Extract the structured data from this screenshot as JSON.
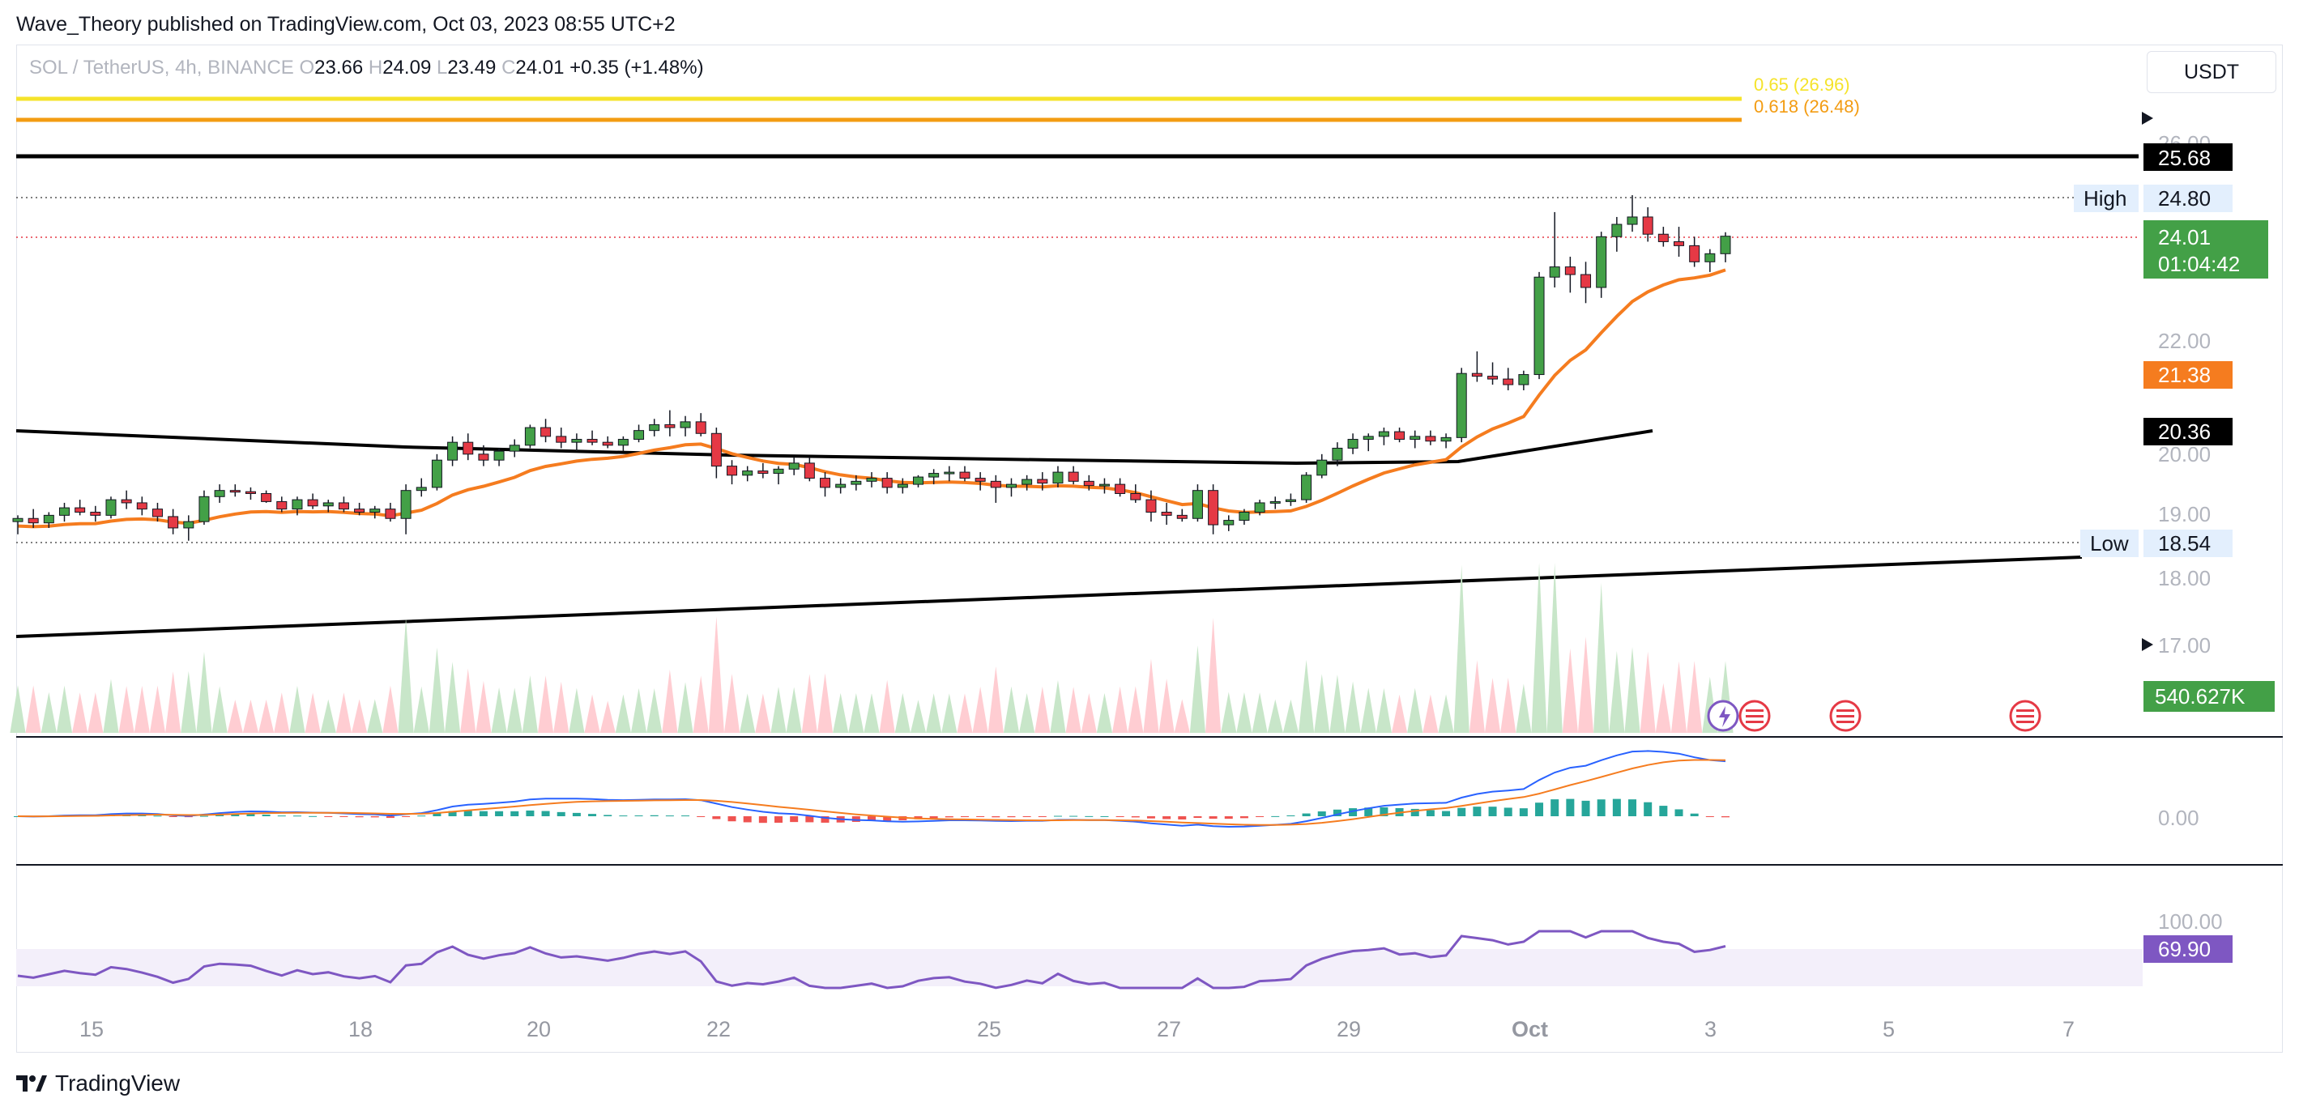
{
  "header": {
    "attribution": "Wave_Theory published on TradingView.com, Oct 03, 2023 08:55 UTC+2"
  },
  "legend": {
    "symbol": "SOL / TetherUS, 4h, BINANCE",
    "o_label": "O",
    "o_value": "23.66",
    "h_label": "H",
    "h_value": "24.09",
    "l_label": "L",
    "l_value": "23.49",
    "c_label": "C",
    "c_value": "24.01",
    "change": "+0.35 (+1.48%)"
  },
  "currency": "USDT",
  "footer": {
    "brand": "TradingView"
  },
  "colors": {
    "up": "#43a047",
    "down": "#e53945",
    "ema_orange": "#f57c1f",
    "ema_black": "#000000",
    "fib_065": "#f5e32a",
    "fib_0618": "#f39c12",
    "macd_line": "#2962ff",
    "signal_line": "#f57c1f",
    "rsi_line": "#7e57c2",
    "rsi_band": "#f3effa",
    "vol_up": "#c8e6c9",
    "vol_down": "#ffcdd2"
  },
  "chart_data": {
    "type": "candlestick",
    "symbol": "SOL / TetherUS",
    "interval": "4h",
    "exchange": "BINANCE",
    "price_axis": {
      "ticks": [
        "26.00",
        "22.00",
        "20.00",
        "19.00",
        "18.00",
        "17.00",
        "0.00",
        "100.00"
      ],
      "scale": "log"
    },
    "time_axis": {
      "ticks": [
        "15",
        "18",
        "20",
        "22",
        "25",
        "27",
        "29",
        "Oct",
        "3",
        "5",
        "7"
      ]
    },
    "horizontal_levels": [
      {
        "label": "0.65 (26.96)",
        "value": 26.96,
        "color": "#f5e32a"
      },
      {
        "label": "0.618 (26.48)",
        "value": 26.48,
        "color": "#f39c12"
      },
      {
        "label": "",
        "value": 25.68,
        "color": "#000000",
        "tag": "25.68"
      },
      {
        "label": "High",
        "value": 24.8,
        "tag": "24.80",
        "style": "dotted"
      },
      {
        "label": "Low",
        "value": 18.54,
        "tag": "18.54",
        "style": "dotted"
      }
    ],
    "price_tags": [
      {
        "text": "25.68",
        "value": 25.68,
        "bg": "#000000"
      },
      {
        "text": "24.80",
        "value": 24.8,
        "bg": "#e3effd",
        "fg": "#131722"
      },
      {
        "text": "24.01",
        "sub": "01:04:42",
        "value": 24.01,
        "bg": "#43a047"
      },
      {
        "text": "21.38",
        "value": 21.38,
        "bg": "#f57c1f"
      },
      {
        "text": "20.36",
        "value": 20.36,
        "bg": "#000000"
      },
      {
        "text": "18.54",
        "value": 18.54,
        "bg": "#e3effd",
        "fg": "#131722"
      },
      {
        "text": "540.627K",
        "value": 540627,
        "bg": "#43a047",
        "pane": "volume"
      },
      {
        "text": "69.90",
        "value": 69.9,
        "bg": "#7e57c2",
        "pane": "rsi"
      }
    ],
    "high_label": "High",
    "low_label": "Low",
    "ema_orange_last": 21.38,
    "ema_black_last": 20.36,
    "volume_last": "540.627K",
    "rsi_last": 69.9,
    "macd_zero_label": "0.00",
    "rsi_top_label": "100.00",
    "candles": [
      [
        18.9,
        19.0,
        18.7,
        18.95
      ],
      [
        18.95,
        19.1,
        18.8,
        18.88
      ],
      [
        18.88,
        19.05,
        18.8,
        19.0
      ],
      [
        19.0,
        19.2,
        18.9,
        19.12
      ],
      [
        19.12,
        19.25,
        19.0,
        19.05
      ],
      [
        19.05,
        19.15,
        18.9,
        19.0
      ],
      [
        19.0,
        19.3,
        18.95,
        19.25
      ],
      [
        19.25,
        19.4,
        19.1,
        19.2
      ],
      [
        19.2,
        19.3,
        19.0,
        19.1
      ],
      [
        19.1,
        19.2,
        18.9,
        18.98
      ],
      [
        18.98,
        19.1,
        18.7,
        18.8
      ],
      [
        18.8,
        19.0,
        18.6,
        18.9
      ],
      [
        18.9,
        19.4,
        18.85,
        19.3
      ],
      [
        19.3,
        19.5,
        19.2,
        19.4
      ],
      [
        19.4,
        19.5,
        19.3,
        19.38
      ],
      [
        19.38,
        19.45,
        19.25,
        19.35
      ],
      [
        19.35,
        19.4,
        19.2,
        19.22
      ],
      [
        19.22,
        19.3,
        19.05,
        19.1
      ],
      [
        19.1,
        19.3,
        19.0,
        19.25
      ],
      [
        19.25,
        19.35,
        19.1,
        19.15
      ],
      [
        19.15,
        19.25,
        19.05,
        19.2
      ],
      [
        19.2,
        19.3,
        19.05,
        19.1
      ],
      [
        19.1,
        19.2,
        19.0,
        19.05
      ],
      [
        19.05,
        19.15,
        18.95,
        19.1
      ],
      [
        19.1,
        19.2,
        18.9,
        18.95
      ],
      [
        18.95,
        19.5,
        18.7,
        19.4
      ],
      [
        19.4,
        19.6,
        19.3,
        19.45
      ],
      [
        19.45,
        20.0,
        19.4,
        19.9
      ],
      [
        19.9,
        20.3,
        19.8,
        20.2
      ],
      [
        20.2,
        20.35,
        19.9,
        20.0
      ],
      [
        20.0,
        20.15,
        19.8,
        19.9
      ],
      [
        19.9,
        20.1,
        19.8,
        20.05
      ],
      [
        20.05,
        20.25,
        19.95,
        20.15
      ],
      [
        20.15,
        20.5,
        20.1,
        20.45
      ],
      [
        20.45,
        20.6,
        20.2,
        20.3
      ],
      [
        20.3,
        20.45,
        20.1,
        20.2
      ],
      [
        20.2,
        20.35,
        20.05,
        20.25
      ],
      [
        20.25,
        20.4,
        20.15,
        20.2
      ],
      [
        20.2,
        20.3,
        20.1,
        20.15
      ],
      [
        20.15,
        20.3,
        20.05,
        20.25
      ],
      [
        20.25,
        20.5,
        20.2,
        20.4
      ],
      [
        20.4,
        20.6,
        20.3,
        20.5
      ],
      [
        20.5,
        20.75,
        20.3,
        20.45
      ],
      [
        20.45,
        20.65,
        20.3,
        20.55
      ],
      [
        20.55,
        20.7,
        20.3,
        20.35
      ],
      [
        20.35,
        20.45,
        19.6,
        19.8
      ],
      [
        19.8,
        19.9,
        19.5,
        19.65
      ],
      [
        19.65,
        19.8,
        19.55,
        19.72
      ],
      [
        19.72,
        19.85,
        19.6,
        19.68
      ],
      [
        19.68,
        19.8,
        19.5,
        19.75
      ],
      [
        19.75,
        19.95,
        19.65,
        19.85
      ],
      [
        19.85,
        19.95,
        19.55,
        19.6
      ],
      [
        19.6,
        19.7,
        19.3,
        19.45
      ],
      [
        19.45,
        19.6,
        19.35,
        19.5
      ],
      [
        19.5,
        19.65,
        19.4,
        19.55
      ],
      [
        19.55,
        19.7,
        19.45,
        19.6
      ],
      [
        19.6,
        19.7,
        19.35,
        19.45
      ],
      [
        19.45,
        19.6,
        19.35,
        19.5
      ],
      [
        19.5,
        19.65,
        19.45,
        19.62
      ],
      [
        19.62,
        19.75,
        19.5,
        19.68
      ],
      [
        19.68,
        19.8,
        19.55,
        19.7
      ],
      [
        19.7,
        19.8,
        19.55,
        19.6
      ],
      [
        19.6,
        19.7,
        19.4,
        19.55
      ],
      [
        19.55,
        19.65,
        19.2,
        19.45
      ],
      [
        19.45,
        19.6,
        19.3,
        19.5
      ],
      [
        19.5,
        19.65,
        19.4,
        19.58
      ],
      [
        19.58,
        19.7,
        19.4,
        19.52
      ],
      [
        19.52,
        19.8,
        19.45,
        19.7
      ],
      [
        19.7,
        19.8,
        19.5,
        19.55
      ],
      [
        19.55,
        19.65,
        19.4,
        19.48
      ],
      [
        19.48,
        19.6,
        19.35,
        19.5
      ],
      [
        19.5,
        19.6,
        19.3,
        19.35
      ],
      [
        19.35,
        19.5,
        19.2,
        19.25
      ],
      [
        19.25,
        19.4,
        18.9,
        19.05
      ],
      [
        19.05,
        19.2,
        18.85,
        19.0
      ],
      [
        19.0,
        19.1,
        18.9,
        18.95
      ],
      [
        18.95,
        19.5,
        18.9,
        19.4
      ],
      [
        19.4,
        19.5,
        18.7,
        18.85
      ],
      [
        18.85,
        19.0,
        18.75,
        18.92
      ],
      [
        18.92,
        19.1,
        18.85,
        19.05
      ],
      [
        19.05,
        19.25,
        19.0,
        19.2
      ],
      [
        19.2,
        19.3,
        19.1,
        19.22
      ],
      [
        19.22,
        19.35,
        19.15,
        19.25
      ],
      [
        19.25,
        19.7,
        19.2,
        19.65
      ],
      [
        19.65,
        20.0,
        19.6,
        19.9
      ],
      [
        19.9,
        20.2,
        19.8,
        20.1
      ],
      [
        20.1,
        20.35,
        20.0,
        20.25
      ],
      [
        20.25,
        20.35,
        20.05,
        20.3
      ],
      [
        20.3,
        20.45,
        20.15,
        20.38
      ],
      [
        20.38,
        20.45,
        20.2,
        20.25
      ],
      [
        20.25,
        20.4,
        20.1,
        20.3
      ],
      [
        20.3,
        20.4,
        20.15,
        20.22
      ],
      [
        20.22,
        20.35,
        20.1,
        20.28
      ],
      [
        20.28,
        21.5,
        20.2,
        21.4
      ],
      [
        21.4,
        21.8,
        21.25,
        21.35
      ],
      [
        21.35,
        21.6,
        21.2,
        21.3
      ],
      [
        21.3,
        21.5,
        21.1,
        21.2
      ],
      [
        21.2,
        21.45,
        21.1,
        21.38
      ],
      [
        21.38,
        23.3,
        21.3,
        23.2
      ],
      [
        23.2,
        24.5,
        23.0,
        23.4
      ],
      [
        23.4,
        23.6,
        22.9,
        23.25
      ],
      [
        23.25,
        23.5,
        22.7,
        23.0
      ],
      [
        23.0,
        24.1,
        22.8,
        24.0
      ],
      [
        24.0,
        24.4,
        23.7,
        24.25
      ],
      [
        24.25,
        24.85,
        24.1,
        24.4
      ],
      [
        24.4,
        24.6,
        23.9,
        24.05
      ],
      [
        24.05,
        24.2,
        23.8,
        23.9
      ],
      [
        23.9,
        24.2,
        23.6,
        23.82
      ],
      [
        23.82,
        24.0,
        23.4,
        23.5
      ],
      [
        23.5,
        23.75,
        23.3,
        23.66
      ],
      [
        23.66,
        24.09,
        23.49,
        24.01
      ]
    ]
  }
}
